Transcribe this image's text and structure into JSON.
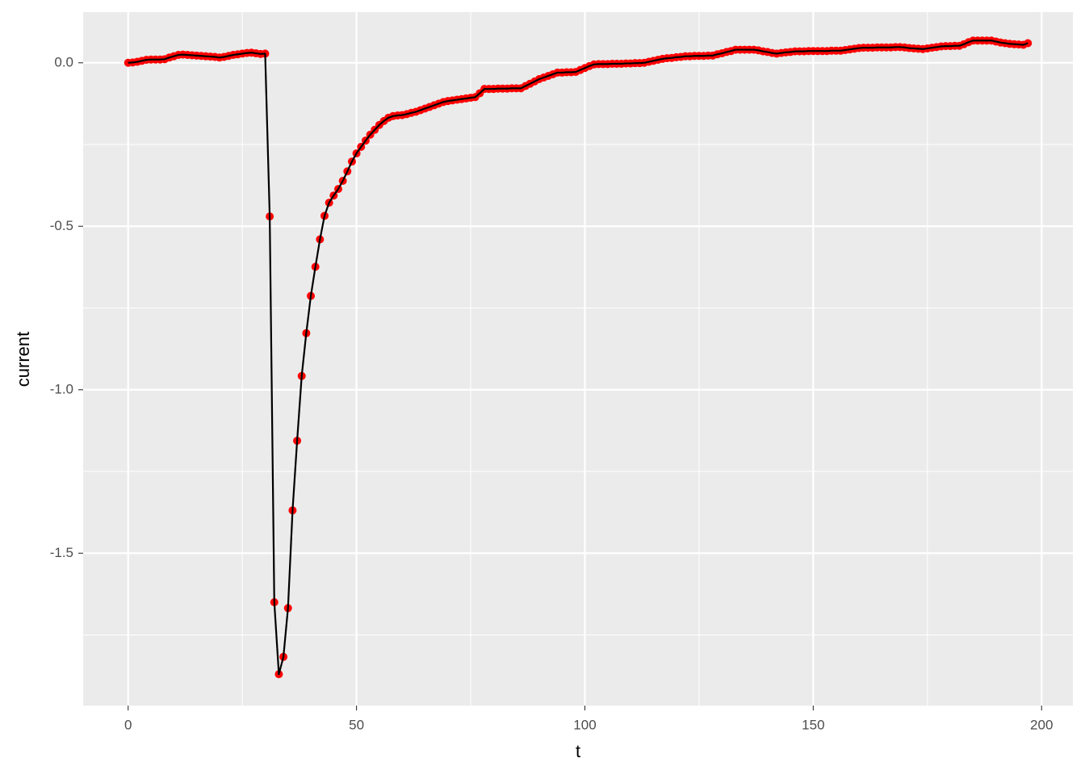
{
  "chart_data": {
    "type": "line_points",
    "x_label": "t",
    "y_label": "current",
    "xlim": [
      -9.85,
      206.85
    ],
    "ylim": [
      -1.966,
      0.155
    ],
    "xticks": [
      0,
      50,
      100,
      150,
      200
    ],
    "xminor": [
      25,
      75,
      125,
      175
    ],
    "yticks": [
      {
        "value": 0,
        "label": "0.0"
      },
      {
        "value": -0.5,
        "label": "-0.5"
      },
      {
        "value": -1,
        "label": "-1.0"
      },
      {
        "value": -1.5,
        "label": "-1.5"
      }
    ],
    "yminor": [
      -0.25,
      -0.75,
      -1.25,
      -1.75
    ],
    "grid": true,
    "point_color": "#ff0000",
    "line_color": "#000000",
    "x": [
      0,
      1,
      2,
      3,
      4,
      5,
      6,
      7,
      8,
      9,
      10,
      11,
      12,
      13,
      14,
      15,
      16,
      17,
      18,
      19,
      20,
      21,
      22,
      23,
      24,
      25,
      26,
      27,
      28,
      29,
      30,
      31,
      32,
      33,
      34,
      35,
      36,
      37,
      38,
      39,
      40,
      41,
      42,
      43,
      44,
      45,
      46,
      47,
      48,
      49,
      50,
      51,
      52,
      53,
      54,
      55,
      56,
      57,
      58,
      59,
      60,
      61,
      62,
      63,
      64,
      65,
      66,
      67,
      68,
      69,
      70,
      71,
      72,
      73,
      74,
      75,
      76,
      77,
      78,
      79,
      80,
      81,
      82,
      83,
      84,
      85,
      86,
      87,
      88,
      89,
      90,
      91,
      92,
      93,
      94,
      95,
      96,
      97,
      98,
      99,
      100,
      101,
      102,
      103,
      104,
      105,
      106,
      107,
      108,
      109,
      110,
      111,
      112,
      113,
      114,
      115,
      116,
      117,
      118,
      119,
      120,
      121,
      122,
      123,
      124,
      125,
      126,
      127,
      128,
      129,
      130,
      131,
      132,
      133,
      134,
      135,
      136,
      137,
      138,
      139,
      140,
      141,
      142,
      143,
      144,
      145,
      146,
      147,
      148,
      149,
      150,
      151,
      152,
      153,
      154,
      155,
      156,
      157,
      158,
      159,
      160,
      161,
      162,
      163,
      164,
      165,
      166,
      167,
      168,
      169,
      170,
      171,
      172,
      173,
      174,
      175,
      176,
      177,
      178,
      179,
      180,
      181,
      182,
      183,
      184,
      185,
      186,
      187,
      188,
      189,
      190,
      191,
      192,
      193,
      194,
      195,
      196,
      197
    ],
    "values": [
      0.0,
      0.001,
      0.003,
      0.006,
      0.009,
      0.01,
      0.01,
      0.01,
      0.011,
      0.016,
      0.02,
      0.024,
      0.025,
      0.024,
      0.023,
      0.022,
      0.021,
      0.02,
      0.019,
      0.018,
      0.016,
      0.018,
      0.021,
      0.024,
      0.026,
      0.028,
      0.03,
      0.031,
      0.029,
      0.027,
      0.028,
      -0.47,
      -1.65,
      -1.87,
      -1.817,
      -1.668,
      -1.369,
      -1.156,
      -0.958,
      -0.827,
      -0.713,
      -0.624,
      -0.54,
      -0.468,
      -0.428,
      -0.406,
      -0.386,
      -0.361,
      -0.332,
      -0.302,
      -0.277,
      -0.257,
      -0.238,
      -0.22,
      -0.205,
      -0.19,
      -0.178,
      -0.168,
      -0.163,
      -0.161,
      -0.16,
      -0.157,
      -0.153,
      -0.15,
      -0.145,
      -0.14,
      -0.135,
      -0.13,
      -0.125,
      -0.12,
      -0.117,
      -0.115,
      -0.113,
      -0.111,
      -0.109,
      -0.107,
      -0.105,
      -0.093,
      -0.08,
      -0.08,
      -0.08,
      -0.079,
      -0.079,
      -0.079,
      -0.078,
      -0.078,
      -0.078,
      -0.071,
      -0.064,
      -0.057,
      -0.05,
      -0.045,
      -0.04,
      -0.035,
      -0.03,
      -0.03,
      -0.029,
      -0.029,
      -0.028,
      -0.022,
      -0.016,
      -0.01,
      -0.005,
      -0.004,
      -0.004,
      -0.004,
      -0.003,
      -0.003,
      -0.003,
      -0.002,
      -0.002,
      -0.001,
      -0.001,
      0,
      0.003,
      0.006,
      0.009,
      0.012,
      0.014,
      0.015,
      0.017,
      0.018,
      0.02,
      0.02,
      0.021,
      0.021,
      0.021,
      0.022,
      0.022,
      0.026,
      0.029,
      0.033,
      0.036,
      0.04,
      0.04,
      0.04,
      0.04,
      0.04,
      0.038,
      0.035,
      0.033,
      0.03,
      0.028,
      0.03,
      0.032,
      0.033,
      0.035,
      0.035,
      0.035,
      0.036,
      0.036,
      0.036,
      0.036,
      0.036,
      0.037,
      0.037,
      0.037,
      0.039,
      0.041,
      0.043,
      0.045,
      0.046,
      0.046,
      0.046,
      0.047,
      0.047,
      0.047,
      0.047,
      0.048,
      0.048,
      0.047,
      0.045,
      0.044,
      0.043,
      0.042,
      0.044,
      0.046,
      0.048,
      0.05,
      0.051,
      0.051,
      0.052,
      0.052,
      0.057,
      0.063,
      0.068,
      0.068,
      0.068,
      0.068,
      0.068,
      0.065,
      0.062,
      0.06,
      0.058,
      0.057,
      0.056,
      0.055,
      0.06
    ]
  }
}
